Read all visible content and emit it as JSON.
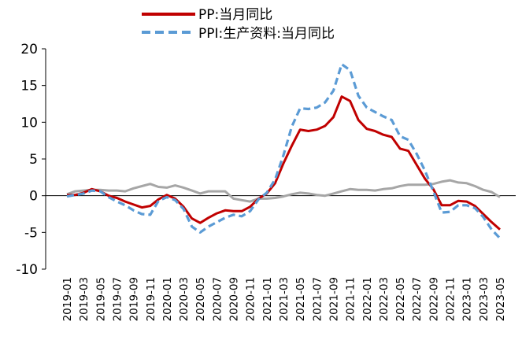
{
  "chart_data": {
    "type": "line",
    "title": "",
    "xlabel": "",
    "ylabel": "",
    "ylim": [
      -10,
      20
    ],
    "yticks": [
      -10,
      -5,
      0,
      5,
      10,
      15,
      20
    ],
    "grid": false,
    "legend": "top-center",
    "x": [
      "2019-01",
      "2019-02",
      "2019-03",
      "2019-04",
      "2019-05",
      "2019-06",
      "2019-07",
      "2019-08",
      "2019-09",
      "2019-10",
      "2019-11",
      "2019-12",
      "2020-01",
      "2020-02",
      "2020-03",
      "2020-04",
      "2020-05",
      "2020-06",
      "2020-07",
      "2020-08",
      "2020-09",
      "2020-10",
      "2020-11",
      "2020-12",
      "2021-01",
      "2021-02",
      "2021-03",
      "2021-04",
      "2021-05",
      "2021-06",
      "2021-07",
      "2021-08",
      "2021-09",
      "2021-10",
      "2021-11",
      "2021-12",
      "2022-01",
      "2022-02",
      "2022-03",
      "2022-04",
      "2022-05",
      "2022-06",
      "2022-07",
      "2022-08",
      "2022-09",
      "2022-10",
      "2022-11",
      "2022-12",
      "2023-01",
      "2023-02",
      "2023-03",
      "2023-04",
      "2023-05"
    ],
    "xtick_labels": [
      "2019-01",
      "2019-03",
      "2019-05",
      "2019-07",
      "2019-09",
      "2019-11",
      "2020-01",
      "2020-03",
      "2020-05",
      "2020-07",
      "2020-09",
      "2020-11",
      "2021-01",
      "2021-03",
      "2021-05",
      "2021-07",
      "2021-09",
      "2021-11",
      "2022-01",
      "2022-03",
      "2022-05",
      "2022-07",
      "2022-09",
      "2022-11",
      "2023-01",
      "2023-03",
      "2023-05"
    ],
    "series": [
      {
        "name": "PP:当月同比",
        "color": "#c00000",
        "style": "solid",
        "values": [
          0.1,
          0.1,
          0.4,
          0.9,
          0.6,
          0.0,
          -0.3,
          -0.8,
          -1.2,
          -1.6,
          -1.4,
          -0.5,
          0.1,
          -0.4,
          -1.5,
          -3.1,
          -3.7,
          -3.0,
          -2.4,
          -2.0,
          -2.1,
          -2.1,
          -1.5,
          -0.4,
          0.3,
          1.7,
          4.4,
          6.8,
          9.0,
          8.8,
          9.0,
          9.5,
          10.7,
          13.5,
          12.9,
          10.3,
          9.1,
          8.8,
          8.3,
          8.0,
          6.4,
          6.1,
          4.2,
          2.3,
          0.9,
          -1.3,
          -1.3,
          -0.7,
          -0.8,
          -1.4,
          -2.5,
          -3.6,
          -4.6
        ]
      },
      {
        "name": "PPI:生产资料:当月同比",
        "color": "#5b9bd5",
        "style": "dashed",
        "values": [
          -0.1,
          0.1,
          0.3,
          0.7,
          0.6,
          -0.2,
          -0.8,
          -1.3,
          -2.0,
          -2.5,
          -2.6,
          -0.7,
          -0.2,
          -0.6,
          -1.8,
          -4.2,
          -5.0,
          -4.2,
          -3.6,
          -3.0,
          -2.6,
          -2.8,
          -2.1,
          -0.5,
          0.4,
          2.2,
          5.5,
          9.4,
          11.9,
          11.8,
          12.0,
          12.7,
          14.3,
          17.9,
          17.1,
          13.6,
          12.0,
          11.4,
          10.8,
          10.3,
          8.1,
          7.6,
          5.7,
          3.4,
          0.6,
          -2.3,
          -2.2,
          -1.3,
          -1.3,
          -1.7,
          -2.9,
          -4.6,
          -5.8
        ]
      },
      {
        "color": "#a6a6a6",
        "style": "solid",
        "values": [
          0.2,
          0.6,
          0.7,
          0.8,
          0.8,
          0.7,
          0.7,
          0.6,
          1.0,
          1.3,
          1.6,
          1.2,
          1.1,
          1.4,
          1.1,
          0.7,
          0.3,
          0.6,
          0.6,
          0.6,
          -0.4,
          -0.6,
          -0.8,
          -0.4,
          -0.4,
          -0.3,
          -0.1,
          0.2,
          0.4,
          0.3,
          0.1,
          0.0,
          0.3,
          0.6,
          0.9,
          0.8,
          0.8,
          0.7,
          0.9,
          1.0,
          1.3,
          1.5,
          1.5,
          1.5,
          1.6,
          1.9,
          2.1,
          1.8,
          1.7,
          1.3,
          0.8,
          0.5,
          -0.2
        ]
      }
    ]
  },
  "legend": {
    "items": [
      {
        "label": "PP:当月同比",
        "color": "#c00000",
        "style": "solid"
      },
      {
        "label": "PPI:生产资料:当月同比",
        "color": "#5b9bd5",
        "style": "dashed"
      }
    ]
  }
}
